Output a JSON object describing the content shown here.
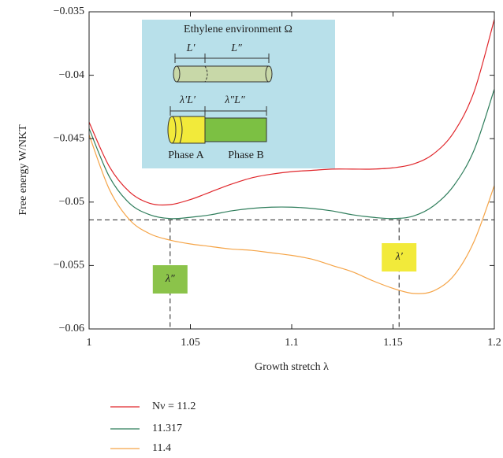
{
  "chart_data": {
    "type": "line",
    "xlabel": "Growth stretch λ",
    "ylabel": "Free energy W/NKT",
    "x": [
      1,
      1.01,
      1.02,
      1.03,
      1.04,
      1.05,
      1.06,
      1.07,
      1.08,
      1.09,
      1.1,
      1.11,
      1.12,
      1.13,
      1.14,
      1.15,
      1.16,
      1.17,
      1.18,
      1.19,
      1.2
    ],
    "series": [
      {
        "name": "Nν = 11.2",
        "color": "#e0262b",
        "values": [
          -0.0437,
          -0.0472,
          -0.0492,
          -0.0501,
          -0.0502,
          -0.0498,
          -0.0492,
          -0.0486,
          -0.0481,
          -0.0478,
          -0.0476,
          -0.0475,
          -0.0474,
          -0.0474,
          -0.0474,
          -0.0473,
          -0.047,
          -0.0462,
          -0.0445,
          -0.0413,
          -0.0356
        ]
      },
      {
        "name": "11.317",
        "color": "#2e7d5b",
        "values": [
          -0.0442,
          -0.048,
          -0.0501,
          -0.051,
          -0.0513,
          -0.0512,
          -0.051,
          -0.0507,
          -0.0505,
          -0.0504,
          -0.0504,
          -0.0505,
          -0.0507,
          -0.051,
          -0.0512,
          -0.0513,
          -0.0511,
          -0.0503,
          -0.0487,
          -0.0459,
          -0.0411
        ]
      },
      {
        "name": "11.4",
        "color": "#f5a447",
        "values": [
          -0.0447,
          -0.049,
          -0.0514,
          -0.0525,
          -0.053,
          -0.0533,
          -0.0535,
          -0.0537,
          -0.0538,
          -0.054,
          -0.0542,
          -0.0545,
          -0.055,
          -0.0555,
          -0.0562,
          -0.0568,
          -0.0572,
          -0.057,
          -0.0558,
          -0.0531,
          -0.0487
        ]
      }
    ],
    "xlim": [
      1,
      1.2
    ],
    "ylim": [
      -0.06,
      -0.035
    ],
    "xticks": [
      1,
      1.05,
      1.1,
      1.15,
      1.2
    ],
    "yticks": [
      {
        "value": -0.06,
        "label": "−0.06"
      },
      {
        "value": -0.055,
        "label": "−0.055"
      },
      {
        "value": -0.05,
        "label": "−0.05"
      },
      {
        "value": -0.045,
        "label": "−0.045"
      },
      {
        "value": -0.04,
        "label": "−0.04"
      },
      {
        "value": -0.035,
        "label": "−0.035"
      }
    ],
    "hline": -0.0514,
    "vlines": [
      {
        "x": 1.04,
        "label": "λ″",
        "color": "#8bc34a"
      },
      {
        "x": 1.153,
        "label": "λ′",
        "color": "#f2ea3a"
      }
    ],
    "legend": "below",
    "inset": {
      "title": "Ethylene environment Ω",
      "top_left": "L′",
      "top_right": "L″",
      "bottom_left": "λ′L′",
      "bottom_right": "λ″L″",
      "phase_a": "Phase A",
      "phase_b": "Phase B"
    }
  }
}
